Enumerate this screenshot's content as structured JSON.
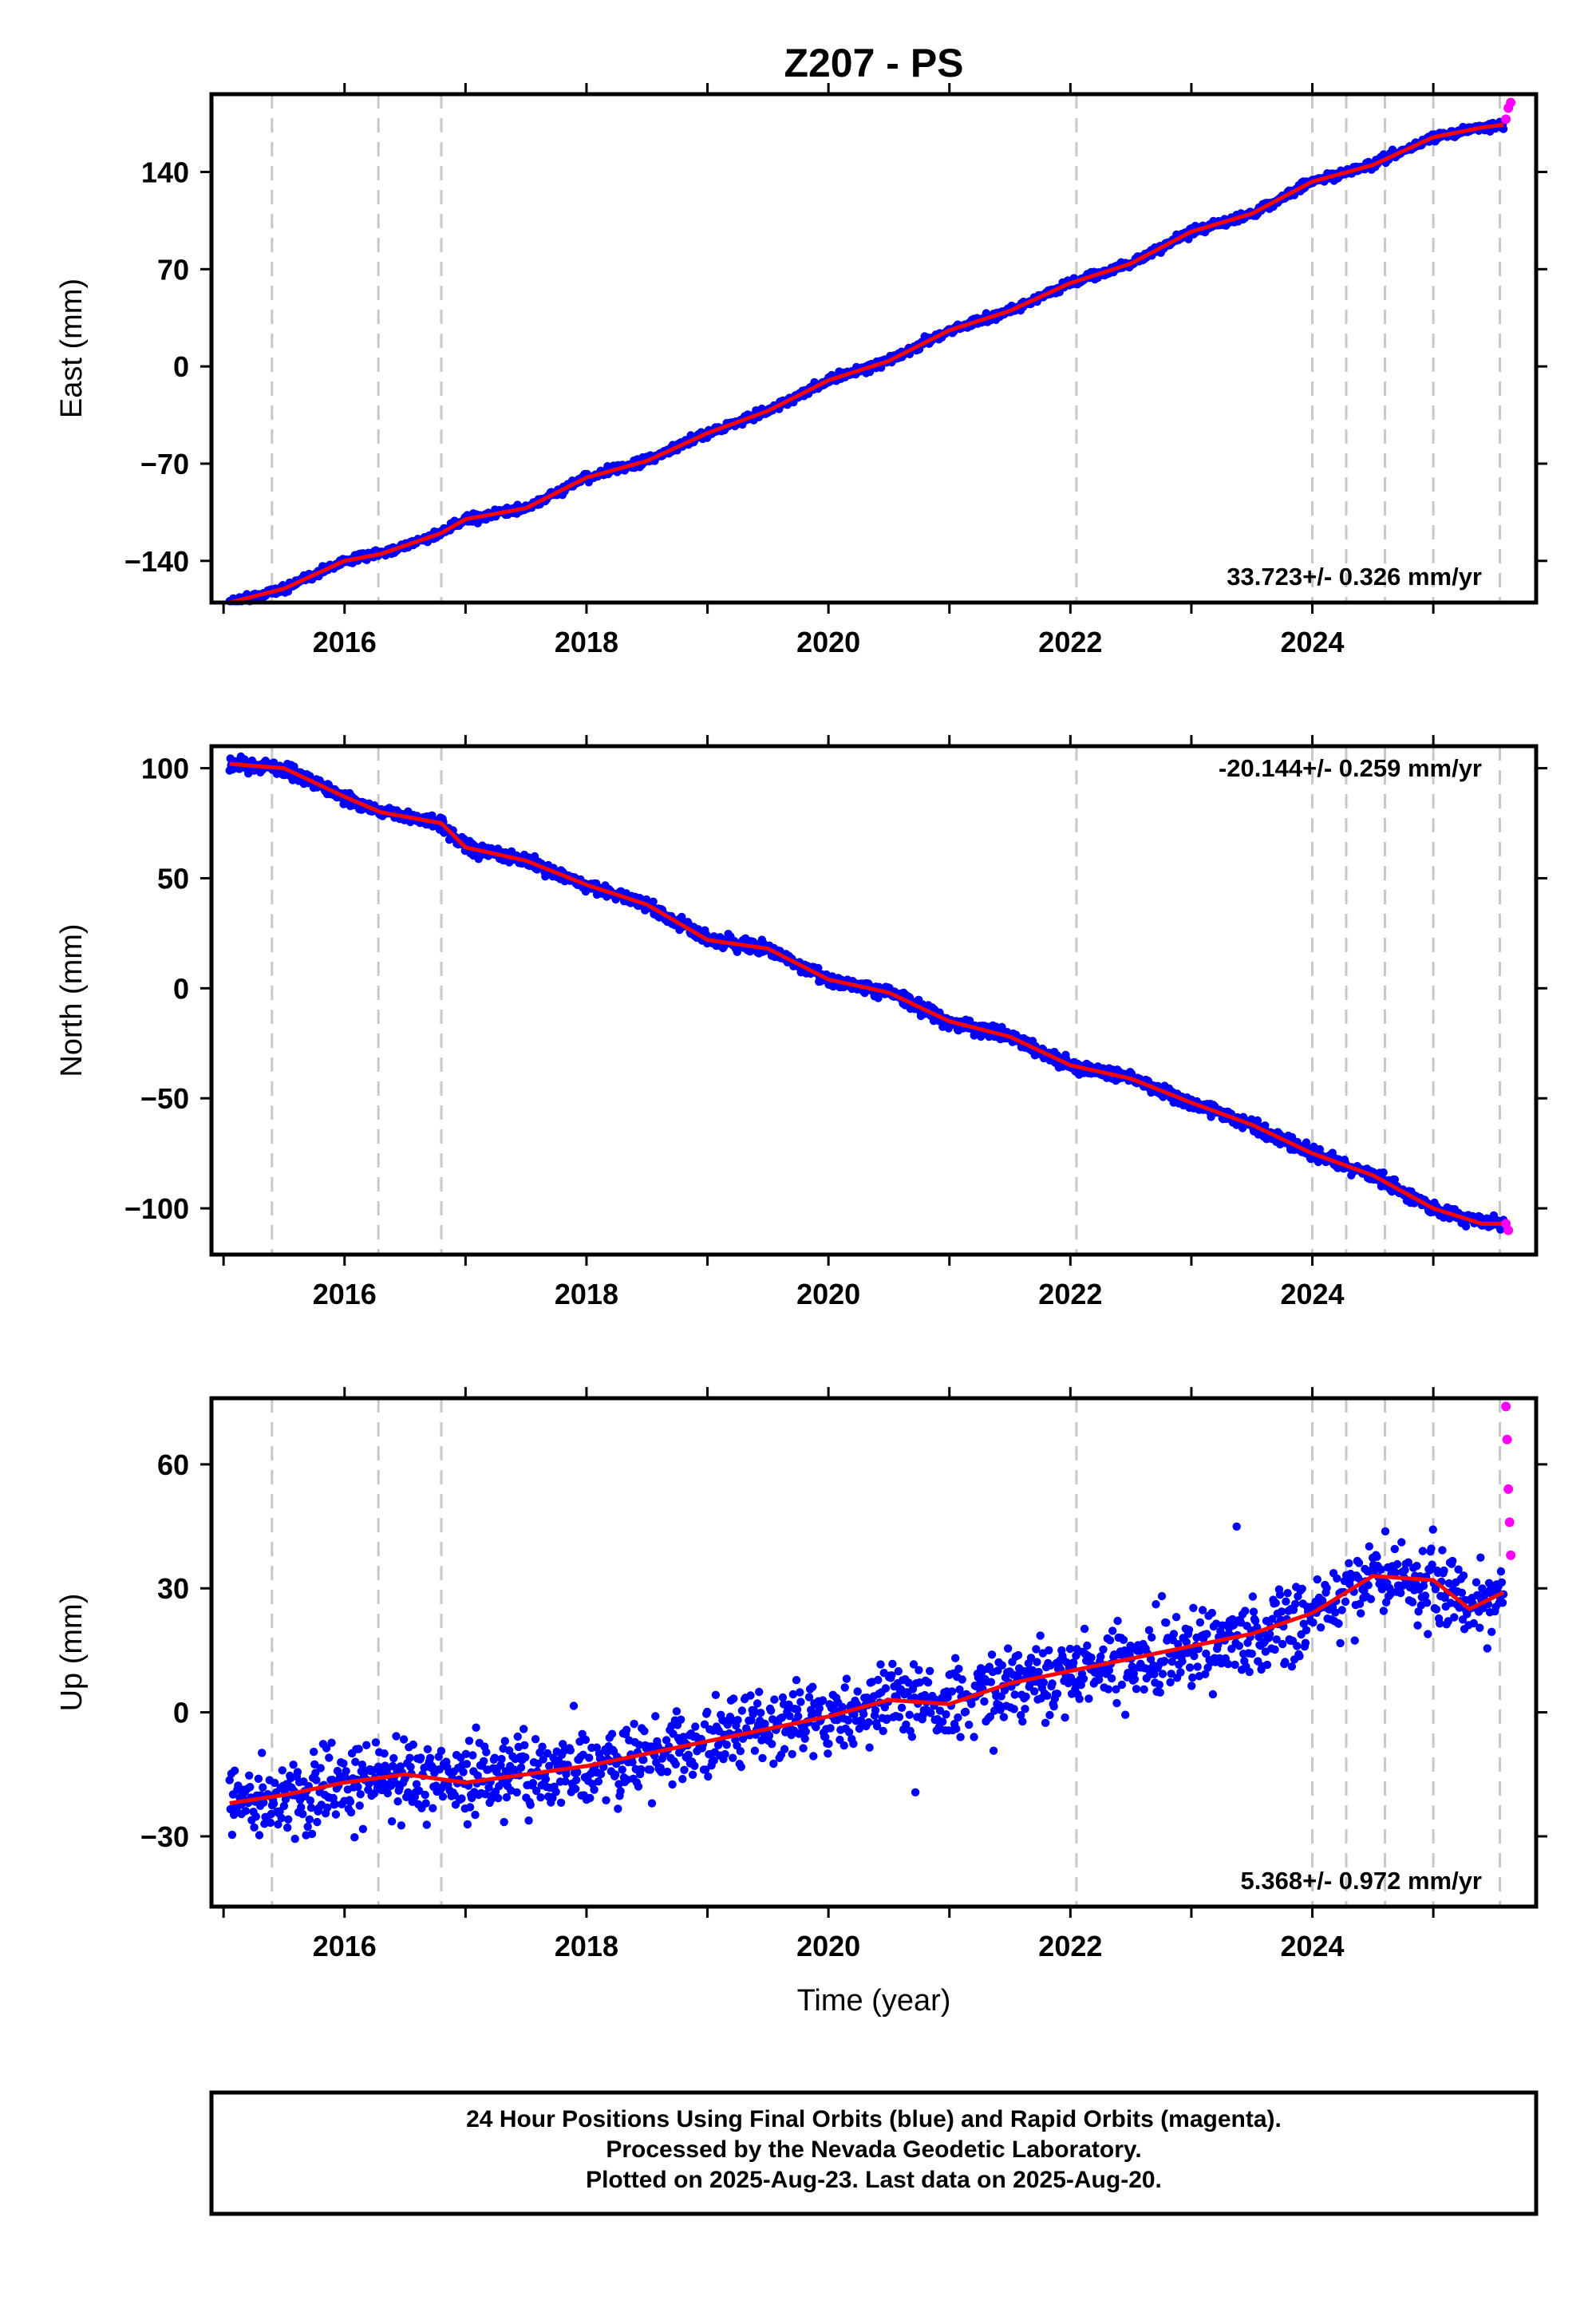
{
  "title": "Z207 - PS",
  "colors": {
    "final_orbits": "#0000ff",
    "rapid_orbits": "#ff00ff",
    "model": "#ff0000",
    "event_lines": "#c8c8c8",
    "frame": "#000000"
  },
  "x_axis": {
    "range": [
      2014.9,
      2025.85
    ],
    "ticks": [
      "2016",
      "2018",
      "2020",
      "2022",
      "2024"
    ],
    "label": "Time (year)"
  },
  "event_lines": [
    2015.4,
    2016.28,
    2016.8,
    2022.05,
    2024.0,
    2024.28,
    2024.6,
    2025.0,
    2025.55
  ],
  "panels": [
    {
      "component": "East",
      "ylabel": "East (mm)",
      "yticks": [
        "140",
        "70",
        "0",
        "−70",
        "−140"
      ],
      "rate_text": "33.723+/- 0.326 mm/yr",
      "rate_position": "bottom-right",
      "show_xlabel": false
    },
    {
      "component": "North",
      "ylabel": "North (mm)",
      "yticks": [
        "100",
        "50",
        "0",
        "−50",
        "−100"
      ],
      "rate_text": "-20.144+/- 0.259 mm/yr",
      "rate_position": "top-right",
      "show_xlabel": false
    },
    {
      "component": "Up",
      "ylabel": "Up (mm)",
      "yticks": [
        "60",
        "30",
        "0",
        "−30"
      ],
      "rate_text": "5.368+/- 0.972 mm/yr",
      "rate_position": "bottom-right",
      "show_xlabel": true
    }
  ],
  "footer": {
    "line1": "24 Hour Positions Using Final Orbits (blue) and Rapid Orbits (magenta).",
    "line2": "Processed by the Nevada Geodetic Laboratory.",
    "line3": "Plotted on 2025-Aug-23. Last data on 2025-Aug-20."
  },
  "chart_data": [
    {
      "type": "scatter",
      "title": "Z207 - PS",
      "xlabel": "",
      "ylabel": "East (mm)",
      "xlim": [
        2014.9,
        2025.85
      ],
      "ylim": [
        -170,
        196
      ],
      "yticks": [
        140,
        70,
        0,
        -70,
        -140
      ],
      "xticks": [
        2016,
        2018,
        2020,
        2022,
        2024
      ],
      "grid": false,
      "series": [
        {
          "name": "Final Orbits",
          "x": [
            2015.05,
            2015.5,
            2016.0,
            2016.3,
            2016.8,
            2017.0,
            2017.5,
            2018.0,
            2018.5,
            2019.0,
            2019.5,
            2020.0,
            2020.5,
            2021.0,
            2021.5,
            2022.0,
            2022.5,
            2023.0,
            2023.5,
            2024.0,
            2024.5,
            2025.0,
            2025.4,
            2025.58
          ],
          "values": [
            -170,
            -160,
            -140,
            -135,
            -120,
            -110,
            -102,
            -80,
            -68,
            -48,
            -32,
            -10,
            4,
            26,
            40,
            60,
            74,
            97,
            110,
            133,
            145,
            165,
            172,
            174
          ]
        },
        {
          "name": "Rapid Orbits",
          "x": [
            2025.6,
            2025.62,
            2025.64
          ],
          "values": [
            178,
            186,
            190
          ]
        }
      ],
      "rate": "33.723+/- 0.326 mm/yr"
    },
    {
      "type": "scatter",
      "xlabel": "",
      "ylabel": "North (mm)",
      "xlim": [
        2014.9,
        2025.85
      ],
      "ylim": [
        -121,
        110
      ],
      "yticks": [
        100,
        50,
        0,
        -50,
        -100
      ],
      "xticks": [
        2016,
        2018,
        2020,
        2022,
        2024
      ],
      "grid": false,
      "series": [
        {
          "name": "Final Orbits",
          "x": [
            2015.05,
            2015.5,
            2016.0,
            2016.3,
            2016.8,
            2017.0,
            2017.5,
            2018.0,
            2018.5,
            2019.0,
            2019.5,
            2020.0,
            2020.5,
            2021.0,
            2021.5,
            2022.0,
            2022.5,
            2023.0,
            2023.5,
            2024.0,
            2024.5,
            2025.0,
            2025.4,
            2025.58
          ],
          "values": [
            102,
            100,
            87,
            80,
            75,
            64,
            58,
            47,
            38,
            22,
            18,
            4,
            -2,
            -15,
            -22,
            -35,
            -41,
            -52,
            -62,
            -75,
            -85,
            -100,
            -107,
            -107
          ]
        },
        {
          "name": "Rapid Orbits",
          "x": [
            2025.6,
            2025.62
          ],
          "values": [
            -107,
            -110
          ]
        }
      ],
      "rate": "-20.144+/- 0.259 mm/yr"
    },
    {
      "type": "scatter",
      "xlabel": "Time (year)",
      "ylabel": "Up (mm)",
      "xlim": [
        2014.9,
        2025.85
      ],
      "ylim": [
        -47,
        76
      ],
      "yticks": [
        60,
        30,
        0,
        -30
      ],
      "xticks": [
        2016,
        2018,
        2020,
        2022,
        2024
      ],
      "grid": false,
      "series": [
        {
          "name": "Final Orbits",
          "x": [
            2015.05,
            2015.5,
            2016.0,
            2016.5,
            2017.0,
            2017.5,
            2018.0,
            2018.5,
            2019.0,
            2019.5,
            2020.0,
            2020.5,
            2021.0,
            2021.5,
            2022.0,
            2022.5,
            2023.0,
            2023.5,
            2024.0,
            2024.5,
            2025.0,
            2025.3,
            2025.58
          ],
          "values": [
            -22,
            -20,
            -17,
            -15,
            -17,
            -15,
            -13,
            -10,
            -7,
            -4,
            -1,
            3,
            2,
            7,
            10,
            13,
            16,
            19,
            24,
            33,
            32,
            25,
            29
          ]
        },
        {
          "name": "Rapid Orbits",
          "x": [
            2025.6,
            2025.61,
            2025.62,
            2025.63,
            2025.64
          ],
          "values": [
            74,
            66,
            54,
            46,
            38
          ]
        }
      ],
      "rate": "5.368+/- 0.972 mm/yr"
    }
  ]
}
